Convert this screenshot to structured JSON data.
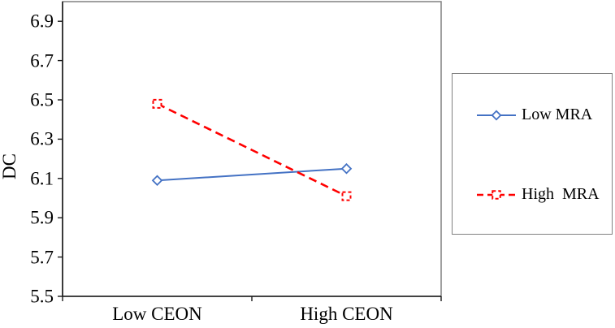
{
  "chart_data": {
    "type": "line",
    "categories": [
      "Low CEON",
      "High CEON"
    ],
    "series": [
      {
        "name": "Low MRA",
        "values": [
          6.09,
          6.15
        ],
        "color": "#4472c4",
        "style": "solid",
        "marker": "diamond"
      },
      {
        "name": "High  MRA",
        "values": [
          6.48,
          6.01
        ],
        "color": "#ff0000",
        "style": "dashed",
        "marker": "square"
      }
    ],
    "title": "",
    "xlabel": "",
    "ylabel": "DC",
    "ylim": [
      5.5,
      7.0
    ],
    "yticks": [
      5.5,
      5.7,
      5.9,
      6.1,
      6.3,
      6.5,
      6.7,
      6.9
    ],
    "grid": false,
    "legend_position": "right",
    "axis_color": "#1a1a1a",
    "plot_border_color": "#808080",
    "marker_fill": "#ffffff"
  }
}
